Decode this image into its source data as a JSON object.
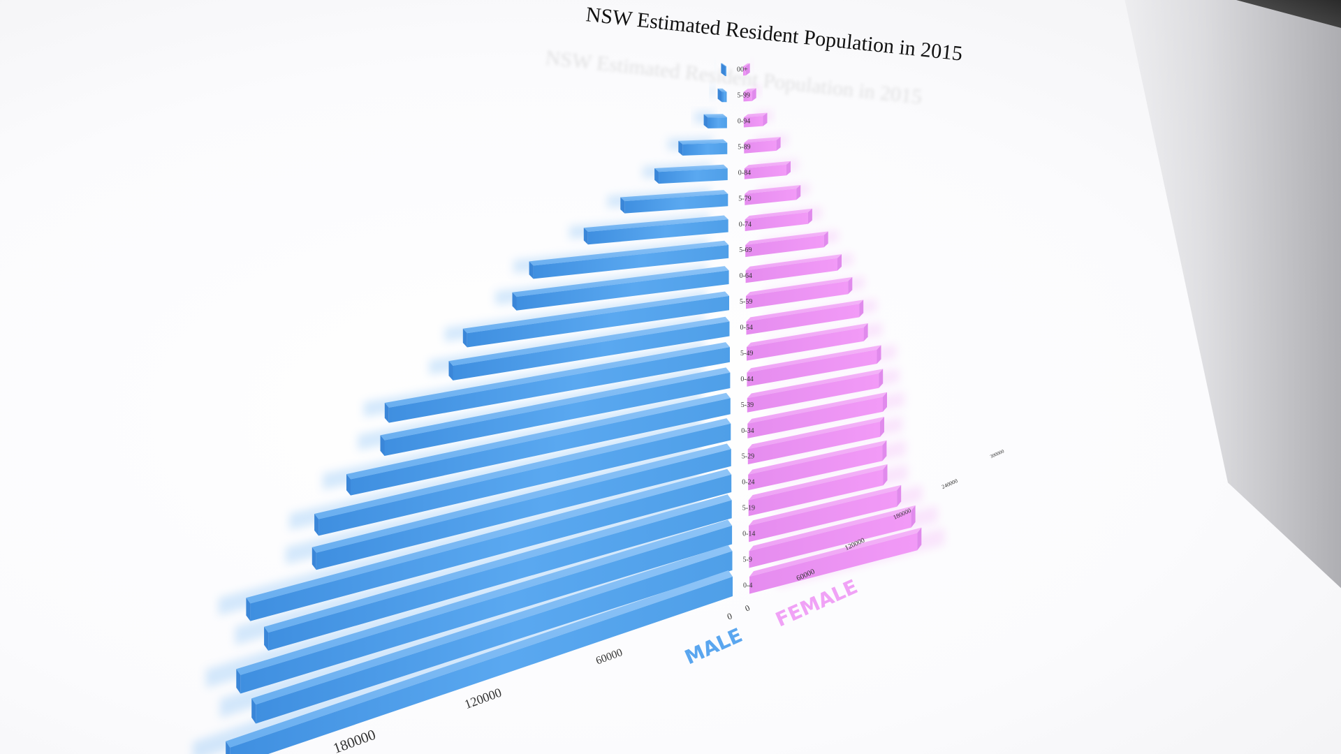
{
  "chart_data": {
    "type": "bar",
    "orientation": "horizontal-population-pyramid",
    "title": "NSW Estimated Resident Population in 2015",
    "categories_displayed": [
      "00+",
      "5-99",
      "0-94",
      "5-89",
      "0-84",
      "5-79",
      "0-74",
      "5-69",
      "0-64",
      "5-59",
      "0-54",
      "5-49",
      "0-44",
      "5-39",
      "0-34",
      "5-29",
      "0-24",
      "5-19",
      "0-14",
      "5-9",
      "0-4"
    ],
    "series": [
      {
        "name": "MALE",
        "color": "#4d9be8",
        "values": [
          1500,
          6000,
          22000,
          48000,
          69000,
          97000,
          124000,
          163000,
          168000,
          197000,
          198000,
          233000,
          226000,
          238000,
          248000,
          240000,
          268000,
          249000,
          255000,
          239000,
          244000
        ]
      },
      {
        "name": "FEMALE",
        "color": "#e98df2",
        "values": [
          5000,
          16000,
          35000,
          57000,
          72000,
          86000,
          102000,
          124000,
          141000,
          153000,
          165000,
          167000,
          181000,
          179000,
          180000,
          172000,
          171000,
          168000,
          181000,
          194000,
          197000
        ]
      }
    ],
    "male_axis": {
      "ticks": [
        0,
        60000,
        120000,
        180000
      ],
      "tick_labels": [
        "0",
        "60000",
        "120000",
        "180000"
      ]
    },
    "female_axis": {
      "ticks": [
        0,
        60000,
        120000,
        180000,
        240000,
        300000
      ],
      "tick_labels": [
        "0",
        "60000",
        "120000",
        "180000",
        "240000",
        "300000"
      ]
    },
    "legend": {
      "male_label": "MALE",
      "female_label": "FEMALE"
    },
    "grid": false
  }
}
